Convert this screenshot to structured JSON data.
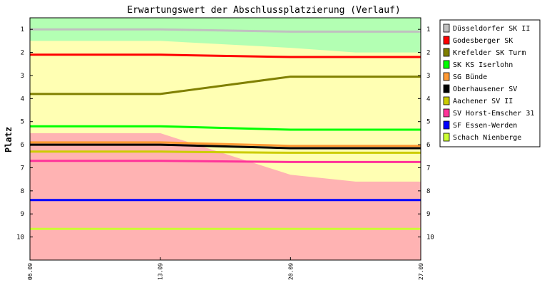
{
  "chart_data": {
    "type": "line",
    "title": "Erwartungswert der Abschlussplatzierung (Verlauf)",
    "ylabel": "Platz",
    "xlabel": "",
    "x_ticks": [
      "06.09",
      "13.09",
      "20.09",
      "27.09"
    ],
    "y_ticks": [
      "1",
      "2",
      "3",
      "4",
      "5",
      "6",
      "7",
      "8",
      "9",
      "10"
    ],
    "ylim": [
      0.5,
      11
    ],
    "y_inverted": true,
    "grid": false,
    "legend_position": "right",
    "zones": [
      {
        "name": "promotion",
        "color": "#b3ffb3",
        "upper": [
          [
            0,
            0.5
          ],
          [
            3,
            0.5
          ]
        ],
        "lower": [
          [
            0,
            1.5
          ],
          [
            1,
            1.5
          ],
          [
            2,
            1.8
          ],
          [
            2.5,
            2.0
          ],
          [
            3,
            2.0
          ]
        ]
      },
      {
        "name": "relegation",
        "color": "#ffb3b3",
        "upper": [
          [
            0,
            5.5
          ],
          [
            1,
            5.5
          ],
          [
            1.5,
            6.4
          ],
          [
            2,
            7.3
          ],
          [
            2.5,
            7.6
          ],
          [
            3,
            7.6
          ]
        ],
        "lower": [
          [
            0,
            11
          ],
          [
            3,
            11
          ]
        ]
      }
    ],
    "middle_zone_color": "#ffffb3",
    "series": [
      {
        "name": "Düsseldorfer SK II",
        "color": "#c0c0c0",
        "points": [
          [
            0,
            1.0
          ],
          [
            1,
            1.0
          ],
          [
            2,
            1.1
          ],
          [
            3,
            1.1
          ]
        ]
      },
      {
        "name": "Godesberger SK",
        "color": "#ff0000",
        "points": [
          [
            0,
            2.1
          ],
          [
            1,
            2.1
          ],
          [
            2,
            2.2
          ],
          [
            3,
            2.2
          ]
        ]
      },
      {
        "name": "Krefelder SK Turm",
        "color": "#808000",
        "points": [
          [
            0,
            3.8
          ],
          [
            1,
            3.8
          ],
          [
            2,
            3.05
          ],
          [
            3,
            3.05
          ]
        ]
      },
      {
        "name": "SK KS Iserlohn",
        "color": "#00ff00",
        "points": [
          [
            0,
            5.2
          ],
          [
            1,
            5.2
          ],
          [
            2,
            5.35
          ],
          [
            3,
            5.35
          ]
        ]
      },
      {
        "name": "SG Bünde",
        "color": "#ff9933",
        "points": [
          [
            0,
            5.9
          ],
          [
            1,
            5.9
          ],
          [
            2,
            6.05
          ],
          [
            3,
            6.05
          ]
        ]
      },
      {
        "name": "Oberhausener SV",
        "color": "#000000",
        "points": [
          [
            0,
            6.0
          ],
          [
            1,
            6.0
          ],
          [
            2,
            6.15
          ],
          [
            3,
            6.15
          ]
        ]
      },
      {
        "name": "Aachener SV II",
        "color": "#cccc00",
        "points": [
          [
            0,
            6.3
          ],
          [
            1,
            6.3
          ],
          [
            2,
            6.35
          ],
          [
            3,
            6.35
          ]
        ]
      },
      {
        "name": "SV Horst-Emscher 31",
        "color": "#ff3399",
        "points": [
          [
            0,
            6.7
          ],
          [
            1,
            6.7
          ],
          [
            2,
            6.75
          ],
          [
            3,
            6.75
          ]
        ]
      },
      {
        "name": "SF Essen-Werden",
        "color": "#0000ff",
        "points": [
          [
            0,
            8.4
          ],
          [
            1,
            8.4
          ],
          [
            2,
            8.4
          ],
          [
            3,
            8.4
          ]
        ]
      },
      {
        "name": "Schach Nienberge",
        "color": "#ccff33",
        "points": [
          [
            0,
            9.65
          ],
          [
            1,
            9.65
          ],
          [
            2,
            9.65
          ],
          [
            3,
            9.65
          ]
        ]
      }
    ]
  }
}
